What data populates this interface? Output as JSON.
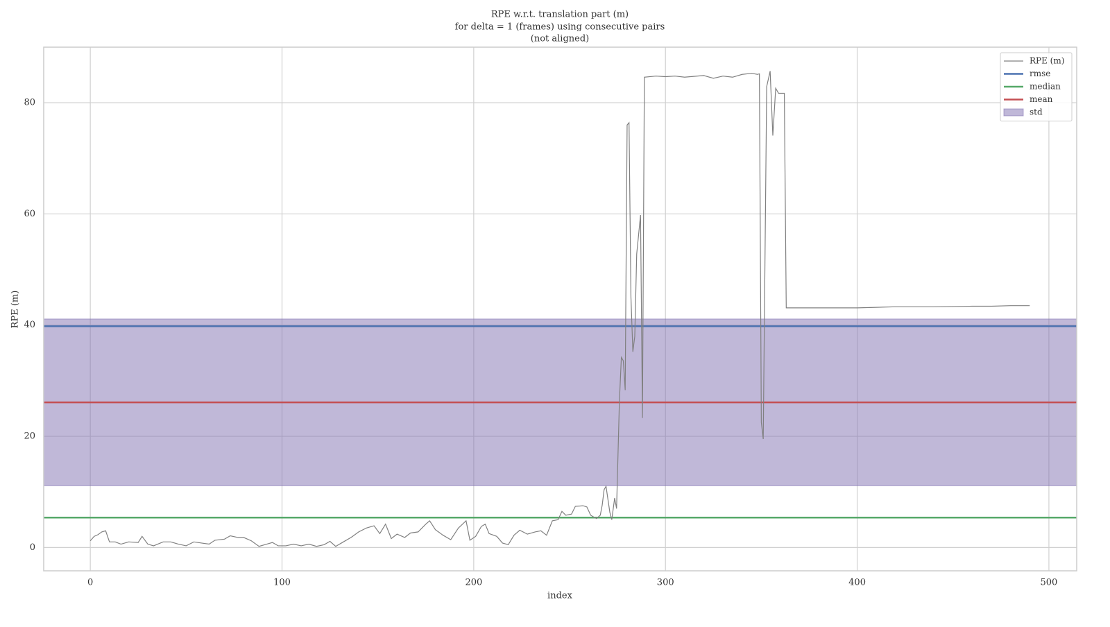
{
  "chart_data": {
    "type": "line",
    "title": [
      "RPE w.r.t. translation part (m)",
      "for delta = 1 (frames) using consecutive pairs",
      "(not aligned)"
    ],
    "xlabel": "index",
    "ylabel": "RPE (m)",
    "xlim": [
      -24.3,
      514.5
    ],
    "ylim": [
      -4.2,
      90
    ],
    "xticks": [
      0,
      100,
      200,
      300,
      400,
      500
    ],
    "yticks": [
      0,
      20,
      40,
      60,
      80
    ],
    "grid": true,
    "legend": "upper right",
    "series": [
      {
        "name": "RPE (m)",
        "color": "#808080",
        "x": [
          0,
          2,
          4,
          6,
          8,
          10,
          13,
          16,
          20,
          25,
          27,
          30,
          33,
          38,
          42,
          46,
          50,
          54,
          58,
          62,
          65,
          70,
          73,
          77,
          80,
          84,
          88,
          92,
          95,
          98,
          102,
          106,
          110,
          114,
          118,
          122,
          125,
          128,
          132,
          136,
          140,
          144,
          148,
          151,
          154,
          157,
          160,
          164,
          167,
          171,
          175,
          177,
          180,
          184,
          188,
          192,
          196,
          198,
          201,
          204,
          206,
          208,
          212,
          215,
          218,
          221,
          224,
          228,
          232,
          235,
          238,
          241,
          244,
          246,
          248,
          251,
          253,
          257,
          259,
          261,
          264,
          266,
          267,
          268,
          269,
          271,
          272,
          273.5,
          274.5,
          276,
          277,
          278,
          279,
          280,
          281,
          282,
          283,
          284,
          285,
          287,
          288,
          289,
          295,
          300,
          305,
          310,
          320,
          325,
          330,
          335,
          340,
          345,
          348,
          349,
          350,
          351,
          352.8,
          354.6,
          356,
          357.5,
          359,
          362,
          363,
          380,
          400,
          410,
          420,
          440,
          460,
          470,
          480,
          490
        ],
        "values": [
          1.2,
          2.0,
          2.3,
          2.8,
          3.0,
          1.0,
          1.0,
          0.6,
          1.0,
          0.9,
          2.0,
          0.6,
          0.3,
          1.0,
          1.0,
          0.6,
          0.3,
          1.0,
          0.8,
          0.6,
          1.3,
          1.5,
          2.1,
          1.8,
          1.8,
          1.2,
          0.2,
          0.6,
          0.9,
          0.3,
          0.3,
          0.6,
          0.3,
          0.6,
          0.2,
          0.5,
          1.1,
          0.2,
          1.0,
          1.8,
          2.8,
          3.5,
          3.9,
          2.5,
          4.2,
          1.6,
          2.4,
          1.8,
          2.6,
          2.8,
          4.2,
          4.8,
          3.2,
          2.2,
          1.4,
          3.5,
          4.8,
          1.3,
          2.0,
          3.8,
          4.2,
          2.5,
          2.0,
          0.8,
          0.5,
          2.2,
          3.1,
          2.4,
          2.8,
          3.0,
          2.2,
          4.8,
          5.0,
          6.5,
          5.8,
          6.0,
          7.4,
          7.5,
          7.3,
          5.8,
          5.2,
          5.8,
          7.6,
          10.4,
          11.0,
          6.3,
          5.0,
          8.9,
          7.0,
          26.5,
          34.2,
          33.6,
          28.3,
          76.0,
          76.4,
          45.0,
          35.2,
          38.0,
          52.8,
          59.8,
          23.3,
          84.6,
          84.8,
          84.7,
          84.8,
          84.6,
          84.9,
          84.4,
          84.8,
          84.6,
          85.1,
          85.3,
          85.1,
          85.2,
          22.5,
          19.5,
          82.9,
          85.7,
          74.1,
          82.6,
          81.7,
          81.7,
          43.1,
          43.1,
          43.1,
          43.2,
          43.3,
          43.3,
          43.4,
          43.4,
          43.5,
          43.5
        ]
      }
    ],
    "stats": [
      {
        "name": "rmse",
        "color": "#4c72b0",
        "value": 39.8
      },
      {
        "name": "median",
        "color": "#55a868",
        "value": 5.37
      },
      {
        "name": "mean",
        "color": "#c44e52",
        "value": 26.1
      }
    ],
    "std": {
      "name": "std",
      "color": "#8172b2",
      "value": 15.0
    }
  }
}
